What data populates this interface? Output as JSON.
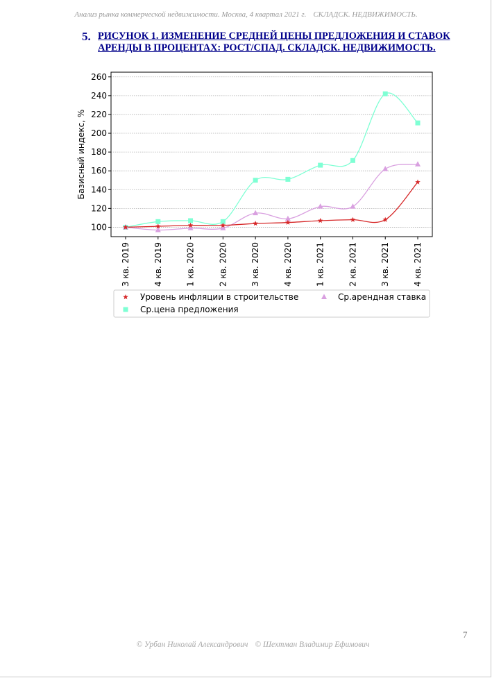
{
  "header": {
    "left": "Анализ рынка коммерческой недвижимости. Москва,  4 квартал 2021 г.",
    "right": "СКЛАДСК. НЕДВИЖИМОСТЬ."
  },
  "figure": {
    "number": "5.",
    "title": "Рисунок 1. Изменение средней цены предложения и ставок аренды в процентах: рост/спад. Складск. недвижимость."
  },
  "chart_data": {
    "type": "line",
    "title": "",
    "xlabel": "",
    "ylabel": "Базисный индекс, %",
    "categories": [
      "3 кв. 2019",
      "4 кв. 2019",
      "1 кв. 2020",
      "2 кв. 2020",
      "3 кв. 2020",
      "4 кв. 2020",
      "1 кв. 2021",
      "2 кв. 2021",
      "3 кв. 2021",
      "4 кв. 2021"
    ],
    "ylim": [
      90,
      265
    ],
    "yticks": [
      100,
      120,
      140,
      160,
      180,
      200,
      220,
      240,
      260
    ],
    "grid": true,
    "legend_position": "bottom",
    "smooth": true,
    "series": [
      {
        "name": "Уровень инфляции в строительстве",
        "color": "#d62728",
        "marker": "star",
        "values": [
          100,
          101,
          102,
          102,
          104,
          105,
          107,
          108,
          108,
          148
        ]
      },
      {
        "name": "Ср.арендная ставка",
        "color": "#d9a0e0",
        "marker": "triangle",
        "values": [
          100,
          97,
          99,
          99,
          115,
          109,
          122,
          122,
          162,
          167
        ]
      },
      {
        "name": "Ср.цена предложения",
        "color": "#7fffd4",
        "marker": "square",
        "values": [
          100,
          106,
          107,
          106,
          150,
          151,
          166,
          171,
          242,
          211
        ]
      }
    ],
    "legend_order": [
      0,
      1,
      2
    ]
  },
  "page_number": "7",
  "footer": {
    "author1": "© Урбан Николай Александрович",
    "author2": "© Шехтман Владимир Ефимович"
  }
}
